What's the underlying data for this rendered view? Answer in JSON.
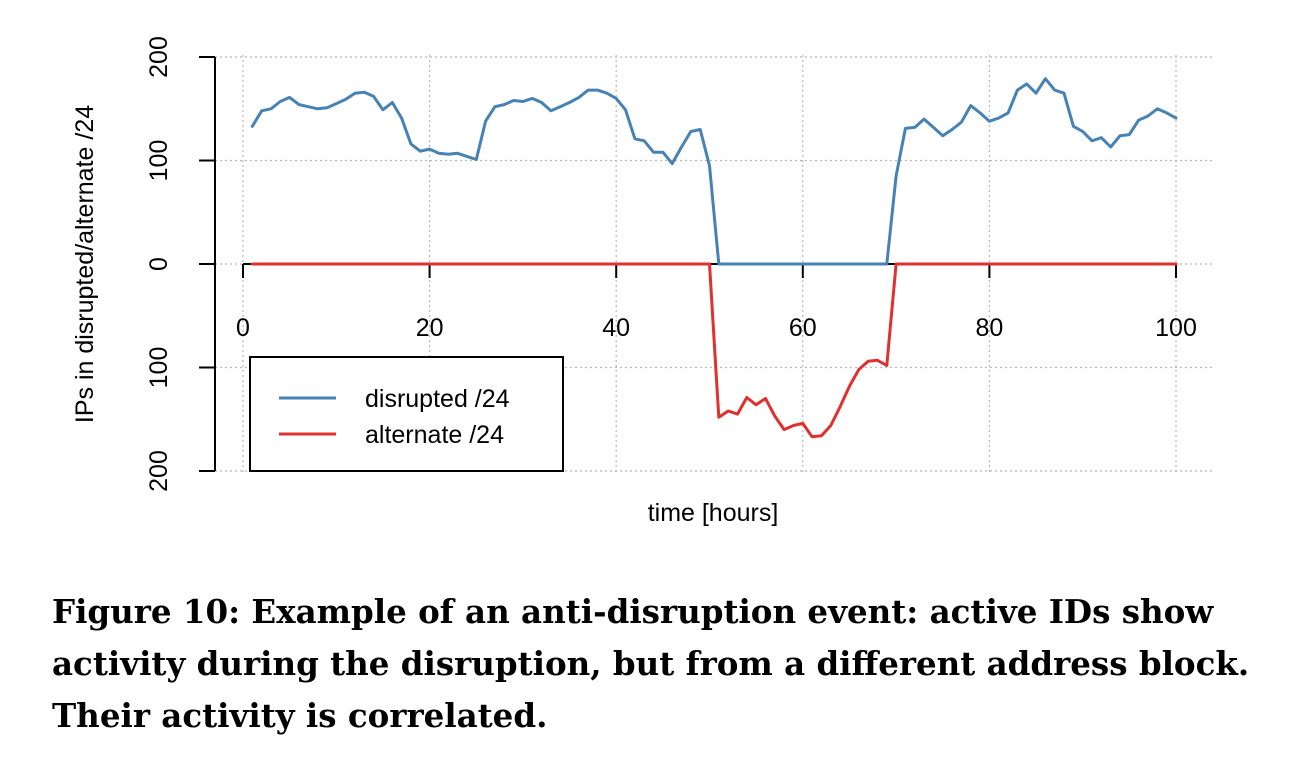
{
  "chart_data": {
    "type": "line",
    "xlabel": "time [hours]",
    "ylabel": "IPs in disrupted/alternate /24",
    "xlim": [
      0,
      100
    ],
    "ylim": [
      -200,
      200
    ],
    "xticks": [
      "0",
      "20",
      "40",
      "60",
      "80",
      "100"
    ],
    "yticks": [
      "200",
      "100",
      "0",
      "100",
      "200"
    ],
    "grid": true,
    "legend_position": "bottom-left",
    "series": [
      {
        "name": "disrupted /24",
        "color": "#4682b4",
        "direction": "up",
        "x": [
          1,
          2,
          3,
          4,
          5,
          6,
          7,
          8,
          9,
          10,
          11,
          12,
          13,
          14,
          15,
          16,
          17,
          18,
          19,
          20,
          21,
          22,
          23,
          24,
          25,
          26,
          27,
          28,
          29,
          30,
          31,
          32,
          33,
          34,
          35,
          36,
          37,
          38,
          39,
          40,
          41,
          42,
          43,
          44,
          45,
          46,
          47,
          48,
          49,
          50,
          51,
          52,
          53,
          54,
          55,
          56,
          57,
          58,
          59,
          60,
          61,
          62,
          63,
          64,
          65,
          66,
          67,
          68,
          69,
          70,
          71,
          72,
          73,
          74,
          75,
          76,
          77,
          78,
          79,
          80,
          81,
          82,
          83,
          84,
          85,
          86,
          87,
          88,
          89,
          90,
          91,
          92,
          93,
          94,
          95,
          96,
          97,
          98,
          99,
          100
        ],
        "y": [
          133,
          148,
          150,
          157,
          161,
          154,
          152,
          150,
          151,
          155,
          159,
          165,
          166,
          162,
          149,
          156,
          141,
          116,
          109,
          111,
          107,
          106,
          107,
          104,
          101,
          138,
          152,
          154,
          158,
          157,
          160,
          156,
          148,
          152,
          156,
          161,
          168,
          168,
          165,
          160,
          149,
          121,
          119,
          108,
          108,
          97,
          113,
          128,
          130,
          95,
          0,
          0,
          0,
          0,
          0,
          0,
          0,
          0,
          0,
          0,
          0,
          0,
          0,
          0,
          0,
          0,
          0,
          0,
          0,
          85,
          131,
          132,
          140,
          132,
          124,
          130,
          137,
          153,
          146,
          138,
          141,
          146,
          168,
          174,
          165,
          179,
          168,
          165,
          133,
          128,
          119,
          122,
          113,
          124,
          125,
          139,
          143,
          150,
          146,
          141
        ]
      },
      {
        "name": "alternate /24",
        "color": "#e03030",
        "direction": "down",
        "x": [
          1,
          2,
          3,
          4,
          5,
          6,
          7,
          8,
          9,
          10,
          11,
          12,
          13,
          14,
          15,
          16,
          17,
          18,
          19,
          20,
          21,
          22,
          23,
          24,
          25,
          26,
          27,
          28,
          29,
          30,
          31,
          32,
          33,
          34,
          35,
          36,
          37,
          38,
          39,
          40,
          41,
          42,
          43,
          44,
          45,
          46,
          47,
          48,
          49,
          50,
          51,
          52,
          53,
          54,
          55,
          56,
          57,
          58,
          59,
          60,
          61,
          62,
          63,
          64,
          65,
          66,
          67,
          68,
          69,
          70,
          71,
          72,
          73,
          74,
          75,
          76,
          77,
          78,
          79,
          80,
          81,
          82,
          83,
          84,
          85,
          86,
          87,
          88,
          89,
          90,
          91,
          92,
          93,
          94,
          95,
          96,
          97,
          98,
          99,
          100
        ],
        "y": [
          0,
          0,
          0,
          0,
          0,
          0,
          0,
          0,
          0,
          0,
          0,
          0,
          0,
          0,
          0,
          0,
          0,
          0,
          0,
          0,
          0,
          0,
          0,
          0,
          0,
          0,
          0,
          0,
          0,
          0,
          0,
          0,
          0,
          0,
          0,
          0,
          0,
          0,
          0,
          0,
          0,
          0,
          0,
          0,
          0,
          0,
          0,
          0,
          0,
          0,
          148,
          142,
          145,
          129,
          136,
          130,
          147,
          160,
          156,
          154,
          167,
          166,
          156,
          138,
          118,
          102,
          94,
          93,
          98,
          0,
          0,
          0,
          0,
          0,
          0,
          0,
          0,
          0,
          0,
          0,
          0,
          0,
          0,
          0,
          0,
          0,
          0,
          0,
          0,
          0,
          0,
          0,
          0,
          0,
          0,
          0,
          0,
          0,
          0,
          0
        ]
      }
    ]
  },
  "caption": "Figure 10: Example of an anti-disruption event: active IDs show activity during the disruption, but from a different address block. Their activity is correlated."
}
